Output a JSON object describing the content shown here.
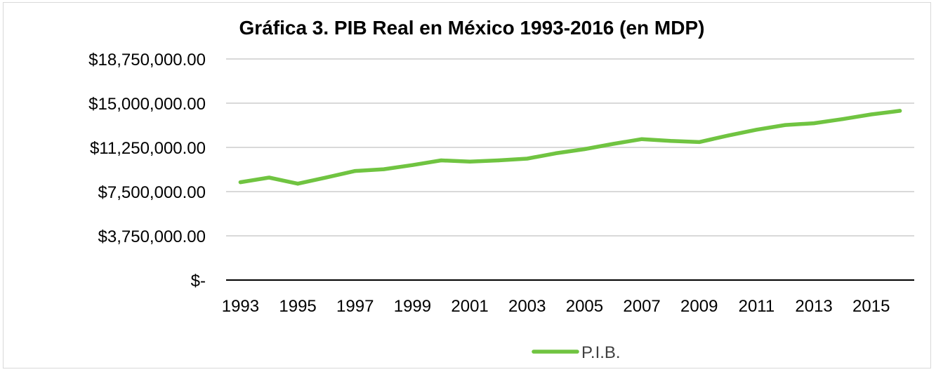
{
  "chart_data": {
    "type": "line",
    "title": "Gráfica 3.  PIB Real en México 1993-2016 (en MDP)",
    "xlabel": "",
    "ylabel": "",
    "x": [
      1993,
      1994,
      1995,
      1996,
      1997,
      1998,
      1999,
      2000,
      2001,
      2002,
      2003,
      2004,
      2005,
      2006,
      2007,
      2008,
      2009,
      2010,
      2011,
      2012,
      2013,
      2014,
      2015,
      2016
    ],
    "x_tick_labels": [
      "1993",
      "1995",
      "1997",
      "1999",
      "2001",
      "2003",
      "2005",
      "2007",
      "2009",
      "2011",
      "2013",
      "2015"
    ],
    "y_tick_labels": [
      "$18,750,000.00",
      "$15,000,000.00",
      "$11,250,000.00",
      "$7,500,000.00",
      "$3,750,000.00",
      "$-"
    ],
    "y_ticks": [
      18750000,
      15000000,
      11250000,
      7500000,
      3750000,
      0
    ],
    "ylim": [
      0,
      18750000
    ],
    "grid": true,
    "legend_position": "bottom",
    "series": [
      {
        "name": "P.I.B.",
        "color": "#70c441",
        "values": [
          8300000,
          8690000,
          8170000,
          8700000,
          9250000,
          9400000,
          9750000,
          10150000,
          10050000,
          10150000,
          10300000,
          10750000,
          11100000,
          11550000,
          11950000,
          11800000,
          11700000,
          12250000,
          12750000,
          13150000,
          13300000,
          13650000,
          14050000,
          14350000
        ]
      }
    ]
  }
}
